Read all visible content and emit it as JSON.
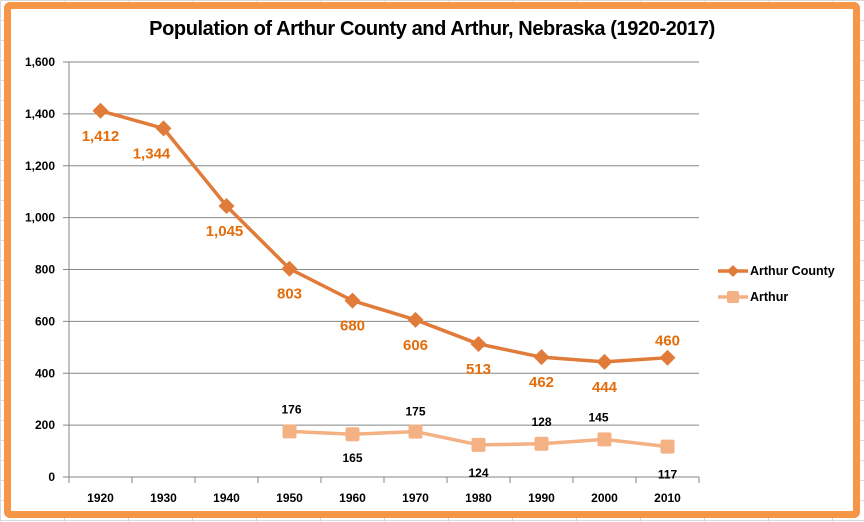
{
  "chart_data": {
    "type": "line",
    "title": "Population of Arthur County and Arthur, Nebraska (1920-2017)",
    "xlabel": "",
    "ylabel": "",
    "categories": [
      "1920",
      "1930",
      "1940",
      "1950",
      "1960",
      "1970",
      "1980",
      "1990",
      "2000",
      "2010"
    ],
    "ylim": [
      0,
      1600
    ],
    "yticks": [
      "0",
      "200",
      "400",
      "600",
      "800",
      "1,000",
      "1,200",
      "1,400",
      "1,600"
    ],
    "grid": true,
    "legend_position": "right",
    "series": [
      {
        "name": "Arthur County",
        "color": "#e07b39",
        "label_color": "#e46c0a",
        "marker": "diamond",
        "values": [
          1412,
          1344,
          1045,
          803,
          680,
          606,
          513,
          462,
          444,
          460
        ],
        "labels": [
          "1,412",
          "1,344",
          "1,045",
          "803",
          "680",
          "606",
          "513",
          "462",
          "444",
          "460"
        ]
      },
      {
        "name": "Arthur",
        "color": "#f4b183",
        "label_color": "#000000",
        "marker": "square",
        "values": [
          null,
          null,
          null,
          176,
          165,
          175,
          124,
          128,
          145,
          117
        ],
        "labels": [
          "",
          "",
          "",
          "176",
          "165",
          "175",
          "124",
          "128",
          "145",
          "117"
        ]
      }
    ]
  },
  "frame": {
    "border_color": "#f79646"
  }
}
